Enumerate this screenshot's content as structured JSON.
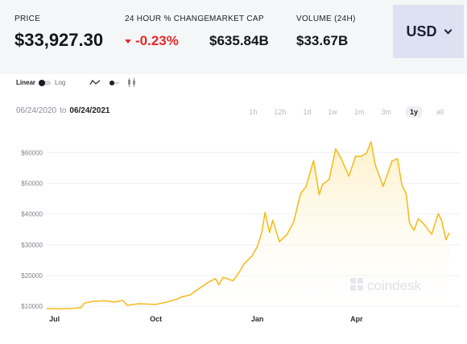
{
  "stats": {
    "price": {
      "label": "PRICE",
      "value": "$33,927.30"
    },
    "change": {
      "label": "24 HOUR % CHANGE",
      "value": "-0.23%"
    },
    "market_cap": {
      "label": "MARKET CAP",
      "value": "$635.84B"
    },
    "volume": {
      "label": "VOLUME (24H)",
      "value": "$33.67B"
    }
  },
  "currency": {
    "label": "USD",
    "icon": "chevron-down-icon"
  },
  "scale": {
    "linear_label": "Linear",
    "log_label": "Log",
    "selected": "Linear"
  },
  "chart_types": [
    "line-chart-icon",
    "scatter-toggle-icon",
    "candlestick-icon"
  ],
  "range": {
    "from": "06/24/2020",
    "to_word": "to",
    "to": "06/24/2021"
  },
  "periods": [
    "1h",
    "12h",
    "1d",
    "1w",
    "1m",
    "3m",
    "1y",
    "all"
  ],
  "active_period": "1y",
  "watermark": "coindesk",
  "colors": {
    "line": "#f4bd22",
    "fill": "#fdf4db",
    "negative": "#e12a2a",
    "currency_bg": "#dde1f2",
    "panel_bg": "#f5f6f7"
  },
  "chart_data": {
    "type": "area",
    "ylim": [
      9000,
      64000
    ],
    "yticks": [
      "$10000",
      "$20000",
      "$30000",
      "$40000",
      "$50000",
      "$60000"
    ],
    "ytick_values": [
      10000,
      20000,
      30000,
      40000,
      50000,
      60000
    ],
    "xticks": [
      {
        "label": "Jul",
        "date": "2020-07-01"
      },
      {
        "label": "Oct",
        "date": "2020-10-01"
      },
      {
        "label": "Jan",
        "date": "2021-01-01"
      },
      {
        "label": "Apr",
        "date": "2021-04-01"
      }
    ],
    "x_range": [
      "2020-06-24",
      "2021-06-24"
    ],
    "series": [
      {
        "points": [
          [
            "2020-06-24",
            9300
          ],
          [
            "2020-07-05",
            9150
          ],
          [
            "2020-07-15",
            9250
          ],
          [
            "2020-07-25",
            9550
          ],
          [
            "2020-07-28",
            11000
          ],
          [
            "2020-08-05",
            11600
          ],
          [
            "2020-08-15",
            11800
          ],
          [
            "2020-08-25",
            11400
          ],
          [
            "2020-09-01",
            11900
          ],
          [
            "2020-09-05",
            10300
          ],
          [
            "2020-09-15",
            10800
          ],
          [
            "2020-09-25",
            10700
          ],
          [
            "2020-10-01",
            10600
          ],
          [
            "2020-10-10",
            11300
          ],
          [
            "2020-10-20",
            12300
          ],
          [
            "2020-10-25",
            13100
          ],
          [
            "2020-11-01",
            13700
          ],
          [
            "2020-11-08",
            15500
          ],
          [
            "2020-11-17",
            17700
          ],
          [
            "2020-11-24",
            19000
          ],
          [
            "2020-11-27",
            17000
          ],
          [
            "2020-12-01",
            19400
          ],
          [
            "2020-12-10",
            18300
          ],
          [
            "2020-12-16",
            21300
          ],
          [
            "2020-12-20",
            23800
          ],
          [
            "2020-12-27",
            26300
          ],
          [
            "2021-01-01",
            29400
          ],
          [
            "2021-01-05",
            33900
          ],
          [
            "2021-01-08",
            40500
          ],
          [
            "2021-01-12",
            34000
          ],
          [
            "2021-01-15",
            38000
          ],
          [
            "2021-01-21",
            31000
          ],
          [
            "2021-01-28",
            33400
          ],
          [
            "2021-02-03",
            37500
          ],
          [
            "2021-02-09",
            46500
          ],
          [
            "2021-02-14",
            48800
          ],
          [
            "2021-02-21",
            57400
          ],
          [
            "2021-02-26",
            46300
          ],
          [
            "2021-03-01",
            49600
          ],
          [
            "2021-03-07",
            51200
          ],
          [
            "2021-03-13",
            61200
          ],
          [
            "2021-03-18",
            58000
          ],
          [
            "2021-03-25",
            52300
          ],
          [
            "2021-03-31",
            58800
          ],
          [
            "2021-04-05",
            58700
          ],
          [
            "2021-04-10",
            59800
          ],
          [
            "2021-04-14",
            63500
          ],
          [
            "2021-04-18",
            55900
          ],
          [
            "2021-04-25",
            49000
          ],
          [
            "2021-05-03",
            57200
          ],
          [
            "2021-05-08",
            58000
          ],
          [
            "2021-05-12",
            49500
          ],
          [
            "2021-05-16",
            46400
          ],
          [
            "2021-05-19",
            37000
          ],
          [
            "2021-05-23",
            34700
          ],
          [
            "2021-05-27",
            38500
          ],
          [
            "2021-06-01",
            36700
          ],
          [
            "2021-06-08",
            33400
          ],
          [
            "2021-06-14",
            40100
          ],
          [
            "2021-06-17",
            38000
          ],
          [
            "2021-06-21",
            31600
          ],
          [
            "2021-06-24",
            33900
          ]
        ]
      }
    ]
  }
}
